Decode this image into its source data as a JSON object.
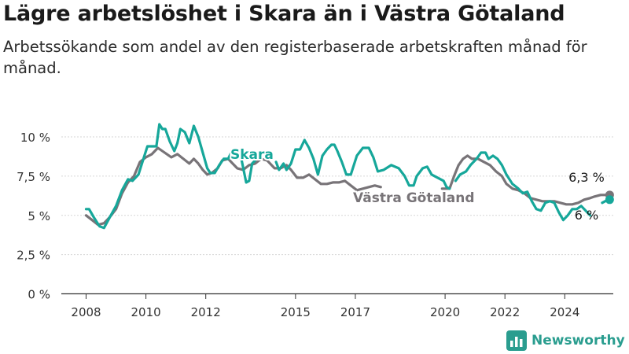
{
  "title": "Lägre arbetslöshet i Skara än i Västra Götaland",
  "subtitle": "Arbetssökande som andel av den registerbaserade arbetskraften månad för månad.",
  "brand": {
    "name": "Newsworthy"
  },
  "colors": {
    "skara": "#16a79a",
    "vg": "#787478",
    "brand": "#2a9d8f"
  },
  "chart_data": {
    "type": "line",
    "title": "Lägre arbetslöshet i Skara än i Västra Götaland",
    "subtitle": "Arbetssökande som andel av den registerbaserade arbetskraften månad för månad.",
    "xlabel": "",
    "ylabel": "",
    "ylim": [
      0,
      10
    ],
    "xlim": [
      2007.5,
      2025.6
    ],
    "grid": true,
    "y_ticks": [
      {
        "value": 0,
        "label": "0 %"
      },
      {
        "value": 2.5,
        "label": "2,5 %"
      },
      {
        "value": 5,
        "label": "5 %"
      },
      {
        "value": 7.5,
        "label": "7,5 %"
      },
      {
        "value": 10,
        "label": "10 %"
      }
    ],
    "x_ticks": [
      {
        "value": 2008,
        "label": "2008"
      },
      {
        "value": 2010,
        "label": "2010"
      },
      {
        "value": 2012,
        "label": "2012"
      },
      {
        "value": 2015,
        "label": "2015"
      },
      {
        "value": 2017,
        "label": "2017"
      },
      {
        "value": 2020,
        "label": "2020"
      },
      {
        "value": 2022,
        "label": "2022"
      },
      {
        "value": 2024,
        "label": "2024"
      }
    ],
    "series": [
      {
        "name": "Skara",
        "color": "#16a79a",
        "end_label": "6 %",
        "end_value": 6.0,
        "segments": [
          [
            [
              2008.0,
              5.4
            ],
            [
              2008.1,
              5.4
            ],
            [
              2008.25,
              4.9
            ],
            [
              2008.45,
              4.3
            ],
            [
              2008.6,
              4.2
            ],
            [
              2008.8,
              4.9
            ],
            [
              2009.0,
              5.6
            ],
            [
              2009.2,
              6.6
            ],
            [
              2009.4,
              7.3
            ],
            [
              2009.55,
              7.2
            ],
            [
              2009.75,
              7.6
            ],
            [
              2009.9,
              8.5
            ],
            [
              2010.05,
              9.4
            ],
            [
              2010.2,
              9.4
            ],
            [
              2010.35,
              9.4
            ],
            [
              2010.45,
              10.8
            ],
            [
              2010.55,
              10.5
            ],
            [
              2010.65,
              10.5
            ],
            [
              2010.8,
              9.7
            ],
            [
              2010.95,
              9.1
            ],
            [
              2011.05,
              9.6
            ],
            [
              2011.15,
              10.5
            ],
            [
              2011.3,
              10.3
            ],
            [
              2011.45,
              9.6
            ],
            [
              2011.6,
              10.7
            ],
            [
              2011.75,
              10.0
            ],
            [
              2011.9,
              9.0
            ],
            [
              2012.05,
              8.0
            ],
            [
              2012.15,
              7.7
            ],
            [
              2012.3,
              7.7
            ],
            [
              2012.45,
              8.2
            ],
            [
              2012.6,
              8.6
            ],
            [
              2012.75,
              8.6
            ],
            [
              2012.9,
              9.2
            ],
            [
              2013.05,
              9.0
            ],
            [
              2013.2,
              8.5
            ],
            [
              2013.35,
              7.1
            ],
            [
              2013.45,
              7.2
            ],
            [
              2013.55,
              8.3
            ],
            [
              2013.7,
              8.6
            ]
          ],
          [
            [
              2014.35,
              8.4
            ],
            [
              2014.45,
              7.9
            ],
            [
              2014.6,
              8.3
            ],
            [
              2014.7,
              7.9
            ],
            [
              2014.85,
              8.3
            ],
            [
              2015.0,
              9.2
            ],
            [
              2015.15,
              9.2
            ],
            [
              2015.3,
              9.8
            ],
            [
              2015.45,
              9.3
            ],
            [
              2015.6,
              8.6
            ],
            [
              2015.75,
              7.6
            ],
            [
              2015.9,
              8.8
            ],
            [
              2016.05,
              9.2
            ],
            [
              2016.2,
              9.5
            ],
            [
              2016.3,
              9.5
            ],
            [
              2016.4,
              9.1
            ],
            [
              2016.55,
              8.4
            ],
            [
              2016.7,
              7.6
            ],
            [
              2016.85,
              7.6
            ],
            [
              2017.05,
              8.8
            ],
            [
              2017.25,
              9.3
            ],
            [
              2017.45,
              9.3
            ],
            [
              2017.6,
              8.7
            ],
            [
              2017.75,
              7.8
            ],
            [
              2017.95,
              7.9
            ],
            [
              2018.2,
              8.2
            ],
            [
              2018.45,
              8.0
            ],
            [
              2018.65,
              7.5
            ],
            [
              2018.8,
              6.9
            ],
            [
              2018.95,
              6.9
            ],
            [
              2019.05,
              7.5
            ],
            [
              2019.25,
              8.0
            ],
            [
              2019.4,
              8.1
            ],
            [
              2019.55,
              7.6
            ],
            [
              2019.75,
              7.4
            ],
            [
              2019.95,
              7.2
            ],
            [
              2020.05,
              6.8
            ],
            [
              2020.15,
              6.7
            ]
          ],
          [
            [
              2020.35,
              7.2
            ],
            [
              2020.5,
              7.6
            ],
            [
              2020.7,
              7.8
            ],
            [
              2020.85,
              8.2
            ],
            [
              2021.05,
              8.6
            ],
            [
              2021.2,
              9.0
            ],
            [
              2021.35,
              9.0
            ],
            [
              2021.45,
              8.6
            ],
            [
              2021.6,
              8.8
            ],
            [
              2021.75,
              8.6
            ],
            [
              2021.9,
              8.2
            ],
            [
              2022.05,
              7.6
            ],
            [
              2022.25,
              7.0
            ],
            [
              2022.45,
              6.7
            ],
            [
              2022.6,
              6.4
            ],
            [
              2022.75,
              6.5
            ],
            [
              2022.9,
              5.9
            ],
            [
              2023.05,
              5.4
            ],
            [
              2023.2,
              5.3
            ],
            [
              2023.35,
              5.8
            ],
            [
              2023.5,
              5.9
            ],
            [
              2023.65,
              5.8
            ],
            [
              2023.8,
              5.2
            ],
            [
              2023.95,
              4.7
            ],
            [
              2024.1,
              5.0
            ],
            [
              2024.25,
              5.4
            ],
            [
              2024.4,
              5.4
            ],
            [
              2024.55,
              5.6
            ],
            [
              2024.7,
              5.3
            ],
            [
              2024.85,
              5.0
            ]
          ],
          [
            [
              2025.25,
              5.8
            ],
            [
              2025.4,
              5.95
            ],
            [
              2025.5,
              6.0
            ]
          ]
        ]
      },
      {
        "name": "Västra Götaland",
        "color": "#787478",
        "end_label": "6,3 %",
        "end_value": 6.3,
        "segments": [
          [
            [
              2008.0,
              5.0
            ],
            [
              2008.2,
              4.7
            ],
            [
              2008.4,
              4.4
            ],
            [
              2008.6,
              4.5
            ],
            [
              2008.8,
              4.9
            ],
            [
              2009.0,
              5.4
            ],
            [
              2009.2,
              6.4
            ],
            [
              2009.4,
              7.1
            ],
            [
              2009.6,
              7.5
            ],
            [
              2009.8,
              8.4
            ],
            [
              2010.0,
              8.7
            ],
            [
              2010.2,
              8.9
            ],
            [
              2010.4,
              9.3
            ],
            [
              2010.55,
              9.1
            ],
            [
              2010.7,
              8.9
            ],
            [
              2010.85,
              8.7
            ],
            [
              2011.05,
              8.9
            ],
            [
              2011.25,
              8.6
            ],
            [
              2011.45,
              8.3
            ],
            [
              2011.6,
              8.6
            ],
            [
              2011.75,
              8.3
            ],
            [
              2011.9,
              7.9
            ],
            [
              2012.05,
              7.6
            ],
            [
              2012.2,
              7.7
            ],
            [
              2012.4,
              8.0
            ],
            [
              2012.55,
              8.5
            ],
            [
              2012.75,
              8.6
            ],
            [
              2012.9,
              8.3
            ],
            [
              2013.05,
              8.0
            ],
            [
              2013.25,
              7.9
            ],
            [
              2013.45,
              8.2
            ],
            [
              2013.65,
              8.3
            ],
            [
              2013.85,
              8.6
            ],
            [
              2014.05,
              8.5
            ],
            [
              2014.3,
              8.0
            ],
            [
              2014.5,
              8.0
            ],
            [
              2014.7,
              8.2
            ],
            [
              2014.85,
              7.9
            ],
            [
              2015.05,
              7.4
            ],
            [
              2015.25,
              7.4
            ],
            [
              2015.45,
              7.6
            ],
            [
              2015.65,
              7.3
            ],
            [
              2015.85,
              7.0
            ],
            [
              2016.05,
              7.0
            ],
            [
              2016.25,
              7.1
            ],
            [
              2016.45,
              7.1
            ],
            [
              2016.65,
              7.2
            ],
            [
              2016.85,
              6.9
            ],
            [
              2017.05,
              6.6
            ],
            [
              2017.25,
              6.7
            ],
            [
              2017.45,
              6.8
            ],
            [
              2017.65,
              6.9
            ],
            [
              2017.85,
              6.8
            ]
          ],
          [
            [
              2019.9,
              6.7
            ],
            [
              2020.05,
              6.7
            ],
            [
              2020.15,
              6.7
            ],
            [
              2020.3,
              7.5
            ],
            [
              2020.45,
              8.2
            ],
            [
              2020.6,
              8.6
            ],
            [
              2020.75,
              8.8
            ],
            [
              2020.9,
              8.6
            ],
            [
              2021.1,
              8.6
            ],
            [
              2021.3,
              8.4
            ],
            [
              2021.5,
              8.2
            ],
            [
              2021.7,
              7.8
            ],
            [
              2021.9,
              7.5
            ],
            [
              2022.05,
              7.0
            ],
            [
              2022.25,
              6.7
            ],
            [
              2022.45,
              6.6
            ],
            [
              2022.65,
              6.4
            ],
            [
              2022.85,
              6.1
            ],
            [
              2023.05,
              6.0
            ],
            [
              2023.25,
              5.9
            ],
            [
              2023.45,
              5.9
            ],
            [
              2023.65,
              5.9
            ],
            [
              2023.85,
              5.8
            ],
            [
              2024.05,
              5.7
            ],
            [
              2024.25,
              5.7
            ],
            [
              2024.45,
              5.8
            ],
            [
              2024.65,
              6.0
            ],
            [
              2024.85,
              6.1
            ],
            [
              2025.0,
              6.2
            ],
            [
              2025.2,
              6.3
            ],
            [
              2025.5,
              6.3
            ]
          ]
        ]
      }
    ]
  }
}
